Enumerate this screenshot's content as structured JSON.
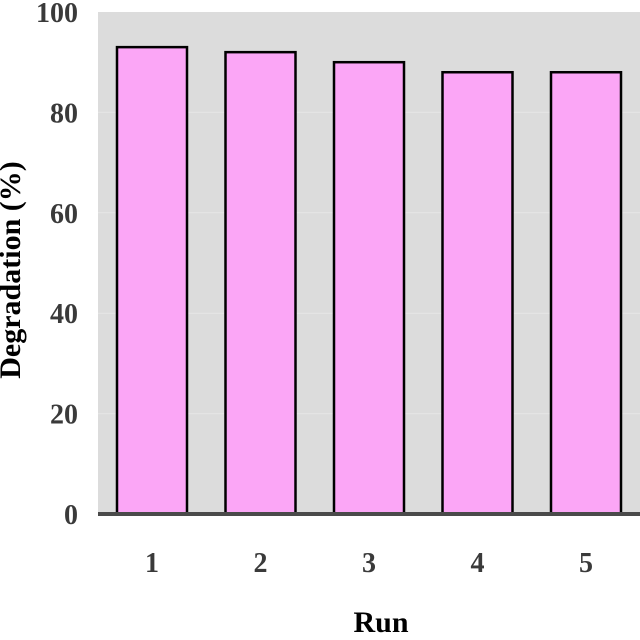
{
  "chart_data": {
    "type": "bar",
    "title": "",
    "xlabel": "Run",
    "ylabel": "Degradation (%)",
    "categories": [
      "1",
      "2",
      "3",
      "4",
      "5"
    ],
    "values": [
      93,
      92,
      90,
      88,
      88
    ],
    "ylim": [
      0,
      100
    ],
    "yticks": [
      "0",
      "20",
      "40",
      "60",
      "80",
      "100"
    ],
    "grid": true,
    "legend": "none",
    "colors": {
      "bar_fill": "#fba6f6",
      "bar_stroke": "#000000",
      "plot_background": "#dcdcdc",
      "gridline": "#e6e6e6",
      "axis_line": "#4a4a4a"
    }
  }
}
